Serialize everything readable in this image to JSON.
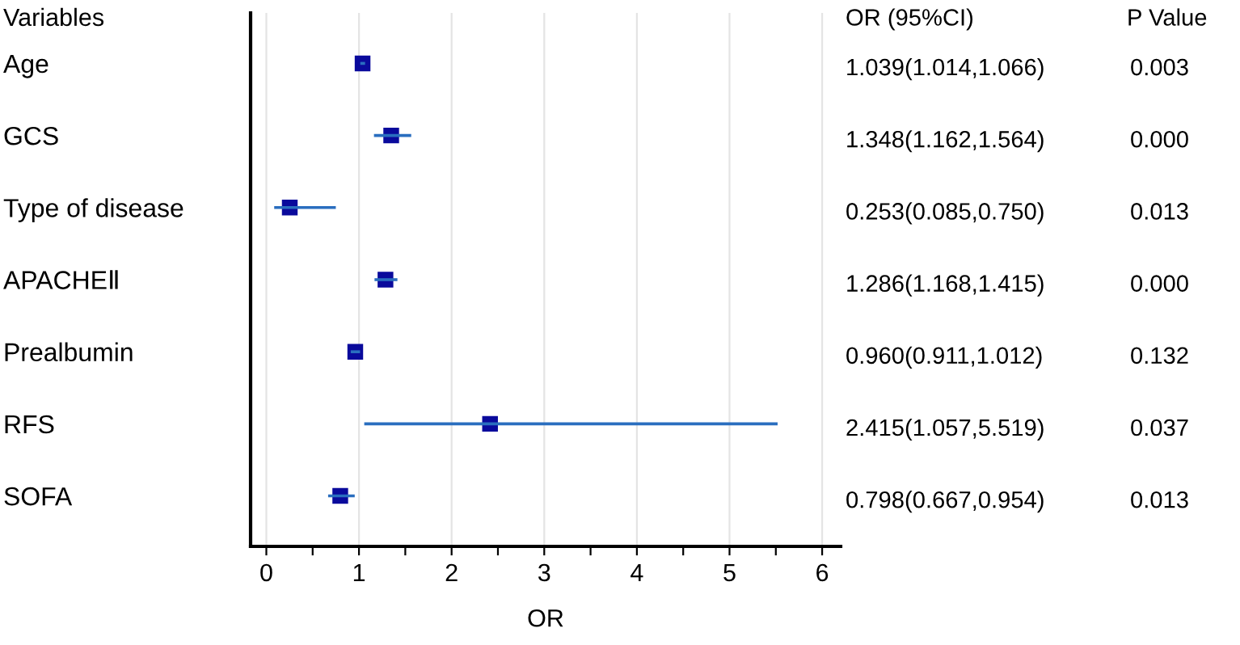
{
  "chart_data": {
    "type": "scatter",
    "orientation": "horizontal",
    "ylabel": "Variables",
    "xlabel": "OR",
    "categories": [
      "Age",
      "GCS",
      "Type of disease",
      "APACHEⅡ",
      "Prealbumin",
      "RFS",
      "SOFA"
    ],
    "values": [
      1.039,
      1.348,
      0.253,
      1.286,
      0.96,
      2.415,
      0.798
    ],
    "errors": [
      [
        1.014,
        1.066
      ],
      [
        1.162,
        1.564
      ],
      [
        0.085,
        0.75
      ],
      [
        1.168,
        1.415
      ],
      [
        0.911,
        1.012
      ],
      [
        1.057,
        5.519
      ],
      [
        0.667,
        0.954
      ]
    ],
    "value_labels": [
      "1.039(1.014,1.066)",
      "1.348(1.162,1.564)",
      "0.253(0.085,0.750)",
      "1.286(1.168,1.415)",
      "0.960(0.911,1.012)",
      "2.415(1.057,5.519)",
      "0.798(0.667,0.954)"
    ],
    "color": "#0a0a9c",
    "marker": "square",
    "xlim": [
      -0.17,
      6.2
    ],
    "xticks": [
      0,
      {
        "value": 0.5,
        "label": null
      },
      1,
      {
        "value": 1.5,
        "label": null
      },
      2,
      {
        "value": 2.5,
        "label": null
      },
      3,
      {
        "value": 3.5,
        "label": null
      },
      4,
      {
        "value": 4.5,
        "label": null
      },
      5,
      {
        "value": 5.5,
        "label": null
      },
      6
    ],
    "grid": "x",
    "annotations": [
      "OR (95%CI)",
      "P Value",
      "0.003",
      "0.000",
      "0.013",
      "0.000",
      "0.132",
      "0.037",
      "0.013"
    ]
  }
}
